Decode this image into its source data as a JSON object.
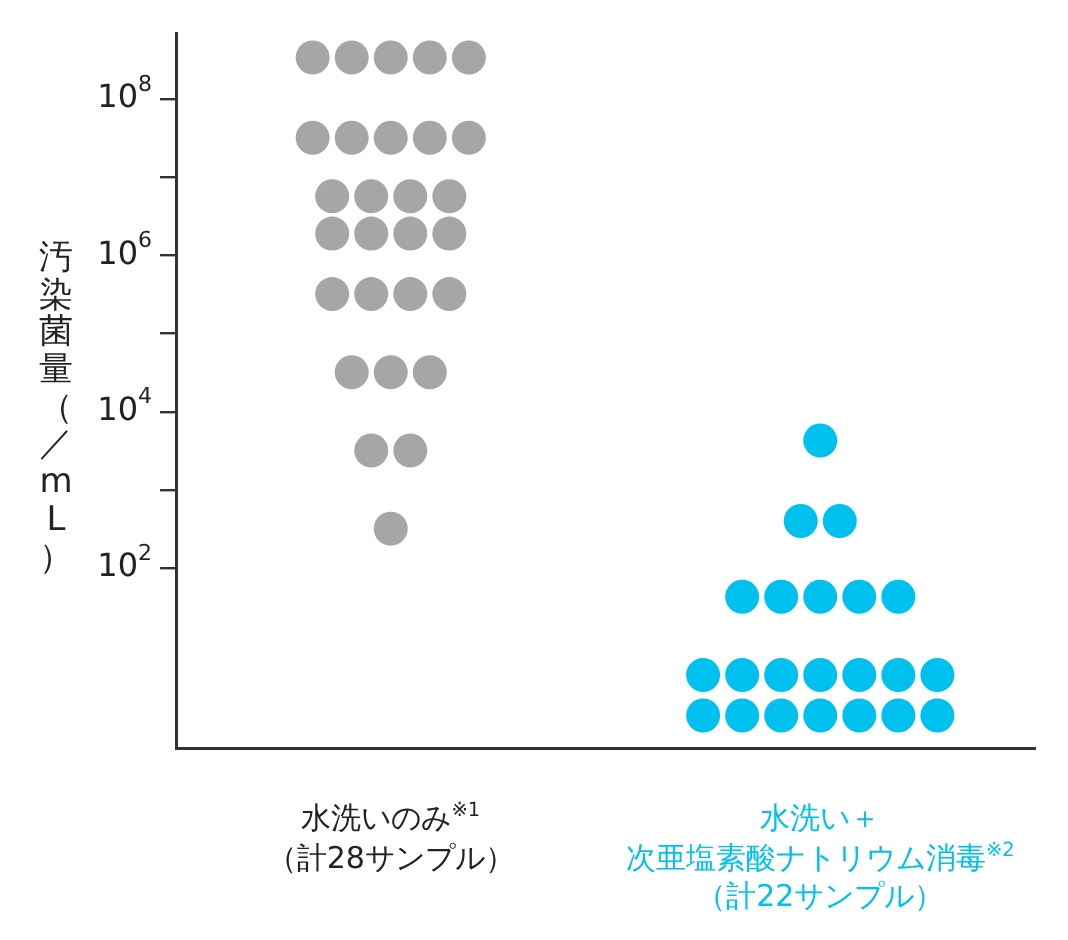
{
  "chart_data": {
    "type": "scatter",
    "ylabel": "汚染菌量（／mL）",
    "categories": [
      "水洗いのみ$^{※1}$（計28サンプル）",
      "水洗い＋次亜塩素酸ナトリウム消毒$^{※2}$（計22サンプル）"
    ],
    "series": [
      {
        "color": "#a6a6a6",
        "x": [
          "水洗いのみ$^{※1}$（計28サンプル）",
          "水洗いのみ$^{※1}$（計28サンプル）",
          "水洗いのみ$^{※1}$（計28サンプル）",
          "水洗いのみ$^{※1}$（計28サンプル）",
          "水洗いのみ$^{※1}$（計28サンプル）",
          "水洗いのみ$^{※1}$（計28サンプル）",
          "水洗いのみ$^{※1}$（計28サンプル）",
          "水洗いのみ$^{※1}$（計28サンプル）",
          "水洗いのみ$^{※1}$（計28サンプル）",
          "水洗いのみ$^{※1}$（計28サンプル）",
          "水洗いのみ$^{※1}$（計28サンプル）",
          "水洗いのみ$^{※1}$（計28サンプル）",
          "水洗いのみ$^{※1}$（計28サンプル）",
          "水洗いのみ$^{※1}$（計28サンプル）",
          "水洗いのみ$^{※1}$（計28サンプル）",
          "水洗いのみ$^{※1}$（計28サンプル）",
          "水洗いのみ$^{※1}$（計28サンプル）",
          "水洗いのみ$^{※1}$（計28サンプル）",
          "水洗いのみ$^{※1}$（計28サンプル）",
          "水洗いのみ$^{※1}$（計28サンプル）",
          "水洗いのみ$^{※1}$（計28サンプル）",
          "水洗いのみ$^{※1}$（計28サンプル）",
          "水洗いのみ$^{※1}$（計28サンプル）",
          "水洗いのみ$^{※1}$（計28サンプル）",
          "水洗いのみ$^{※1}$（計28サンプル）",
          "水洗いのみ$^{※1}$（計28サンプル）",
          "水洗いのみ$^{※1}$（計28サンプル）",
          "水洗いのみ$^{※1}$（計28サンプル）"
        ],
        "values": [
          340000000,
          340000000,
          340000000,
          340000000,
          340000000,
          32000000,
          32000000,
          32000000,
          32000000,
          32000000,
          5700000,
          5700000,
          5700000,
          5700000,
          1900000,
          1900000,
          1900000,
          1900000,
          320000,
          320000,
          320000,
          320000,
          32000,
          32000,
          32000,
          3200,
          3200,
          320
        ]
      },
      {
        "color": "#00c0f0",
        "x": [
          "水洗い＋次亜塩素酸ナトリウム消毒$^{※2}$（計22サンプル）",
          "水洗い＋次亜塩素酸ナトリウム消毒$^{※2}$（計22サンプル）",
          "水洗い＋次亜塩素酸ナトリウム消毒$^{※2}$（計22サンプル）",
          "水洗い＋次亜塩素酸ナトリウム消毒$^{※2}$（計22サンプル）",
          "水洗い＋次亜塩素酸ナトリウム消毒$^{※2}$（計22サンプル）",
          "水洗い＋次亜塩素酸ナトリウム消毒$^{※2}$（計22サンプル）",
          "水洗い＋次亜塩素酸ナトリウム消毒$^{※2}$（計22サンプル）",
          "水洗い＋次亜塩素酸ナトリウム消毒$^{※2}$（計22サンプル）",
          "水洗い＋次亜塩素酸ナトリウム消毒$^{※2}$（計22サンプル）",
          "水洗い＋次亜塩素酸ナトリウム消毒$^{※2}$（計22サンプル）",
          "水洗い＋次亜塩素酸ナトリウム消毒$^{※2}$（計22サンプル）",
          "水洗い＋次亜塩素酸ナトリウム消毒$^{※2}$（計22サンプル）",
          "水洗い＋次亜塩素酸ナトリウム消毒$^{※2}$（計22サンプル）",
          "水洗い＋次亜塩素酸ナトリウム消毒$^{※2}$（計22サンプル）",
          "水洗い＋次亜塩素酸ナトリウム消毒$^{※2}$（計22サンプル）",
          "水洗い＋次亜塩素酸ナトリウム消毒$^{※2}$（計22サンプル）",
          "水洗い＋次亜塩素酸ナトリウム消毒$^{※2}$（計22サンプル）",
          "水洗い＋次亜塩素酸ナトリウム消毒$^{※2}$（計22サンプル）",
          "水洗い＋次亜塩素酸ナトリウム消毒$^{※2}$（計22サンプル）",
          "水洗い＋次亜塩素酸ナトリウム消毒$^{※2}$（計22サンプル）",
          "水洗い＋次亜塩素酸ナトリウム消毒$^{※2}$（計22サンプル）",
          "水洗い＋次亜塩素酸ナトリウム消毒$^{※2}$（計22サンプル）"
        ],
        "values": [
          4300,
          400,
          400,
          43,
          43,
          43,
          43,
          43,
          4.3,
          4.3,
          4.3,
          4.3,
          4.3,
          4.3,
          4.3,
          1.3,
          1.3,
          1.3,
          1.3,
          1.3,
          1.3,
          1.3
        ]
      }
    ],
    "log": "y",
    "ylim": [
      0.5,
      700000000
    ],
    "yticks": [
      {
        "value": 100,
        "label": "10$^{2}$"
      },
      {
        "value": 1000,
        "label": null
      },
      {
        "value": 10000,
        "label": "10$^{4}$"
      },
      {
        "value": 100000,
        "label": null
      },
      {
        "value": 1000000,
        "label": "10$^{6}$"
      },
      {
        "value": 10000000,
        "label": null
      },
      {
        "value": 100000000,
        "label": "10$^{8}$"
      }
    ],
    "marker": "circle"
  }
}
